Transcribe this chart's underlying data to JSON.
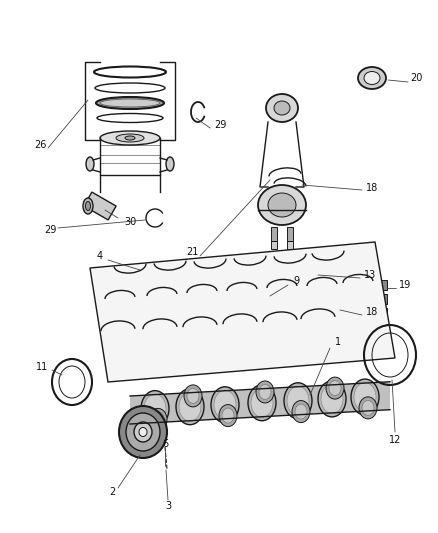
{
  "bg_color": "#ffffff",
  "line_color": "#1a1a1a",
  "gray_dark": "#555555",
  "gray_mid": "#888888",
  "gray_light": "#bbbbbb",
  "gray_fill": "#d0d0d0",
  "figsize": [
    4.38,
    5.33
  ],
  "dpi": 100
}
